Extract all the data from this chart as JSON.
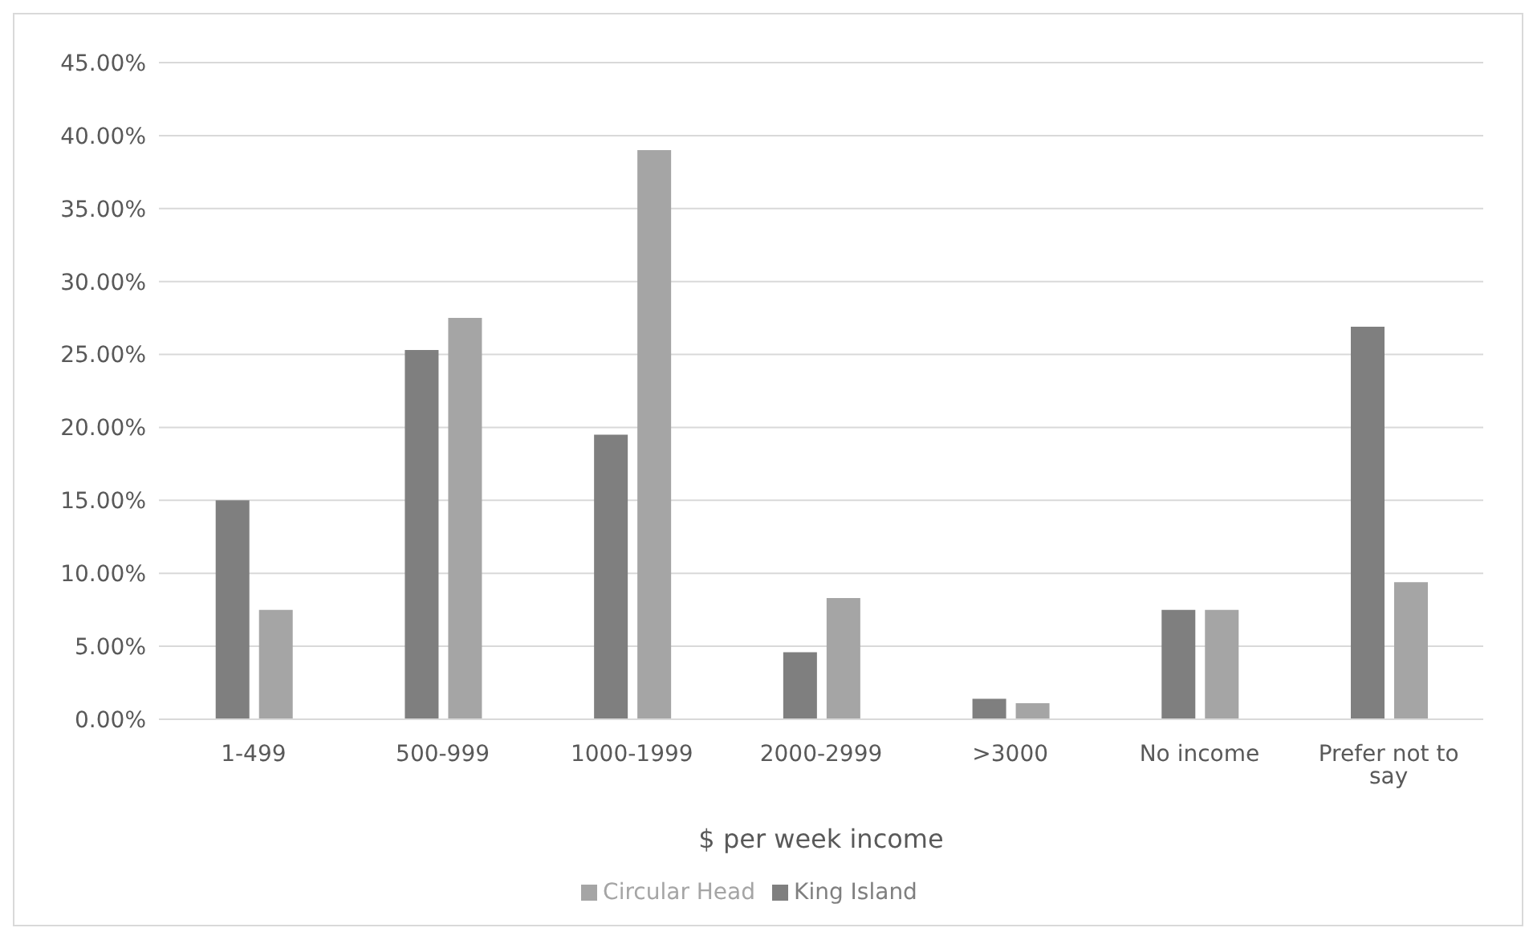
{
  "chart_data": {
    "type": "bar",
    "xlabel": "$ per week  income",
    "categories": [
      "1-499",
      "500-999",
      "1000-1999",
      "2000-2999",
      ">3000",
      "No income",
      "Prefer not to say"
    ],
    "series": [
      {
        "name": "King Island",
        "color": "#7f7f7f",
        "values": [
          15,
          25.3,
          19.5,
          4.6,
          1.4,
          7.5,
          26.9
        ]
      },
      {
        "name": "Circular Head",
        "color": "#a5a5a5",
        "values": [
          7.5,
          27.5,
          39,
          8.3,
          1.1,
          7.5,
          9.4
        ]
      }
    ],
    "ylim": [
      0,
      45
    ],
    "yticks": [
      {
        "value": 0,
        "label": "0.00%"
      },
      {
        "value": 5,
        "label": "5.00%"
      },
      {
        "value": 10,
        "label": "10.00%"
      },
      {
        "value": 15,
        "label": "15.00%"
      },
      {
        "value": 20,
        "label": "20.00%"
      },
      {
        "value": 25,
        "label": "25.00%"
      },
      {
        "value": 30,
        "label": "30.00%"
      },
      {
        "value": 35,
        "label": "35.00%"
      },
      {
        "value": 40,
        "label": "40.00%"
      },
      {
        "value": 45,
        "label": "45.00%"
      }
    ],
    "grid": "y",
    "legend": "bottom"
  }
}
